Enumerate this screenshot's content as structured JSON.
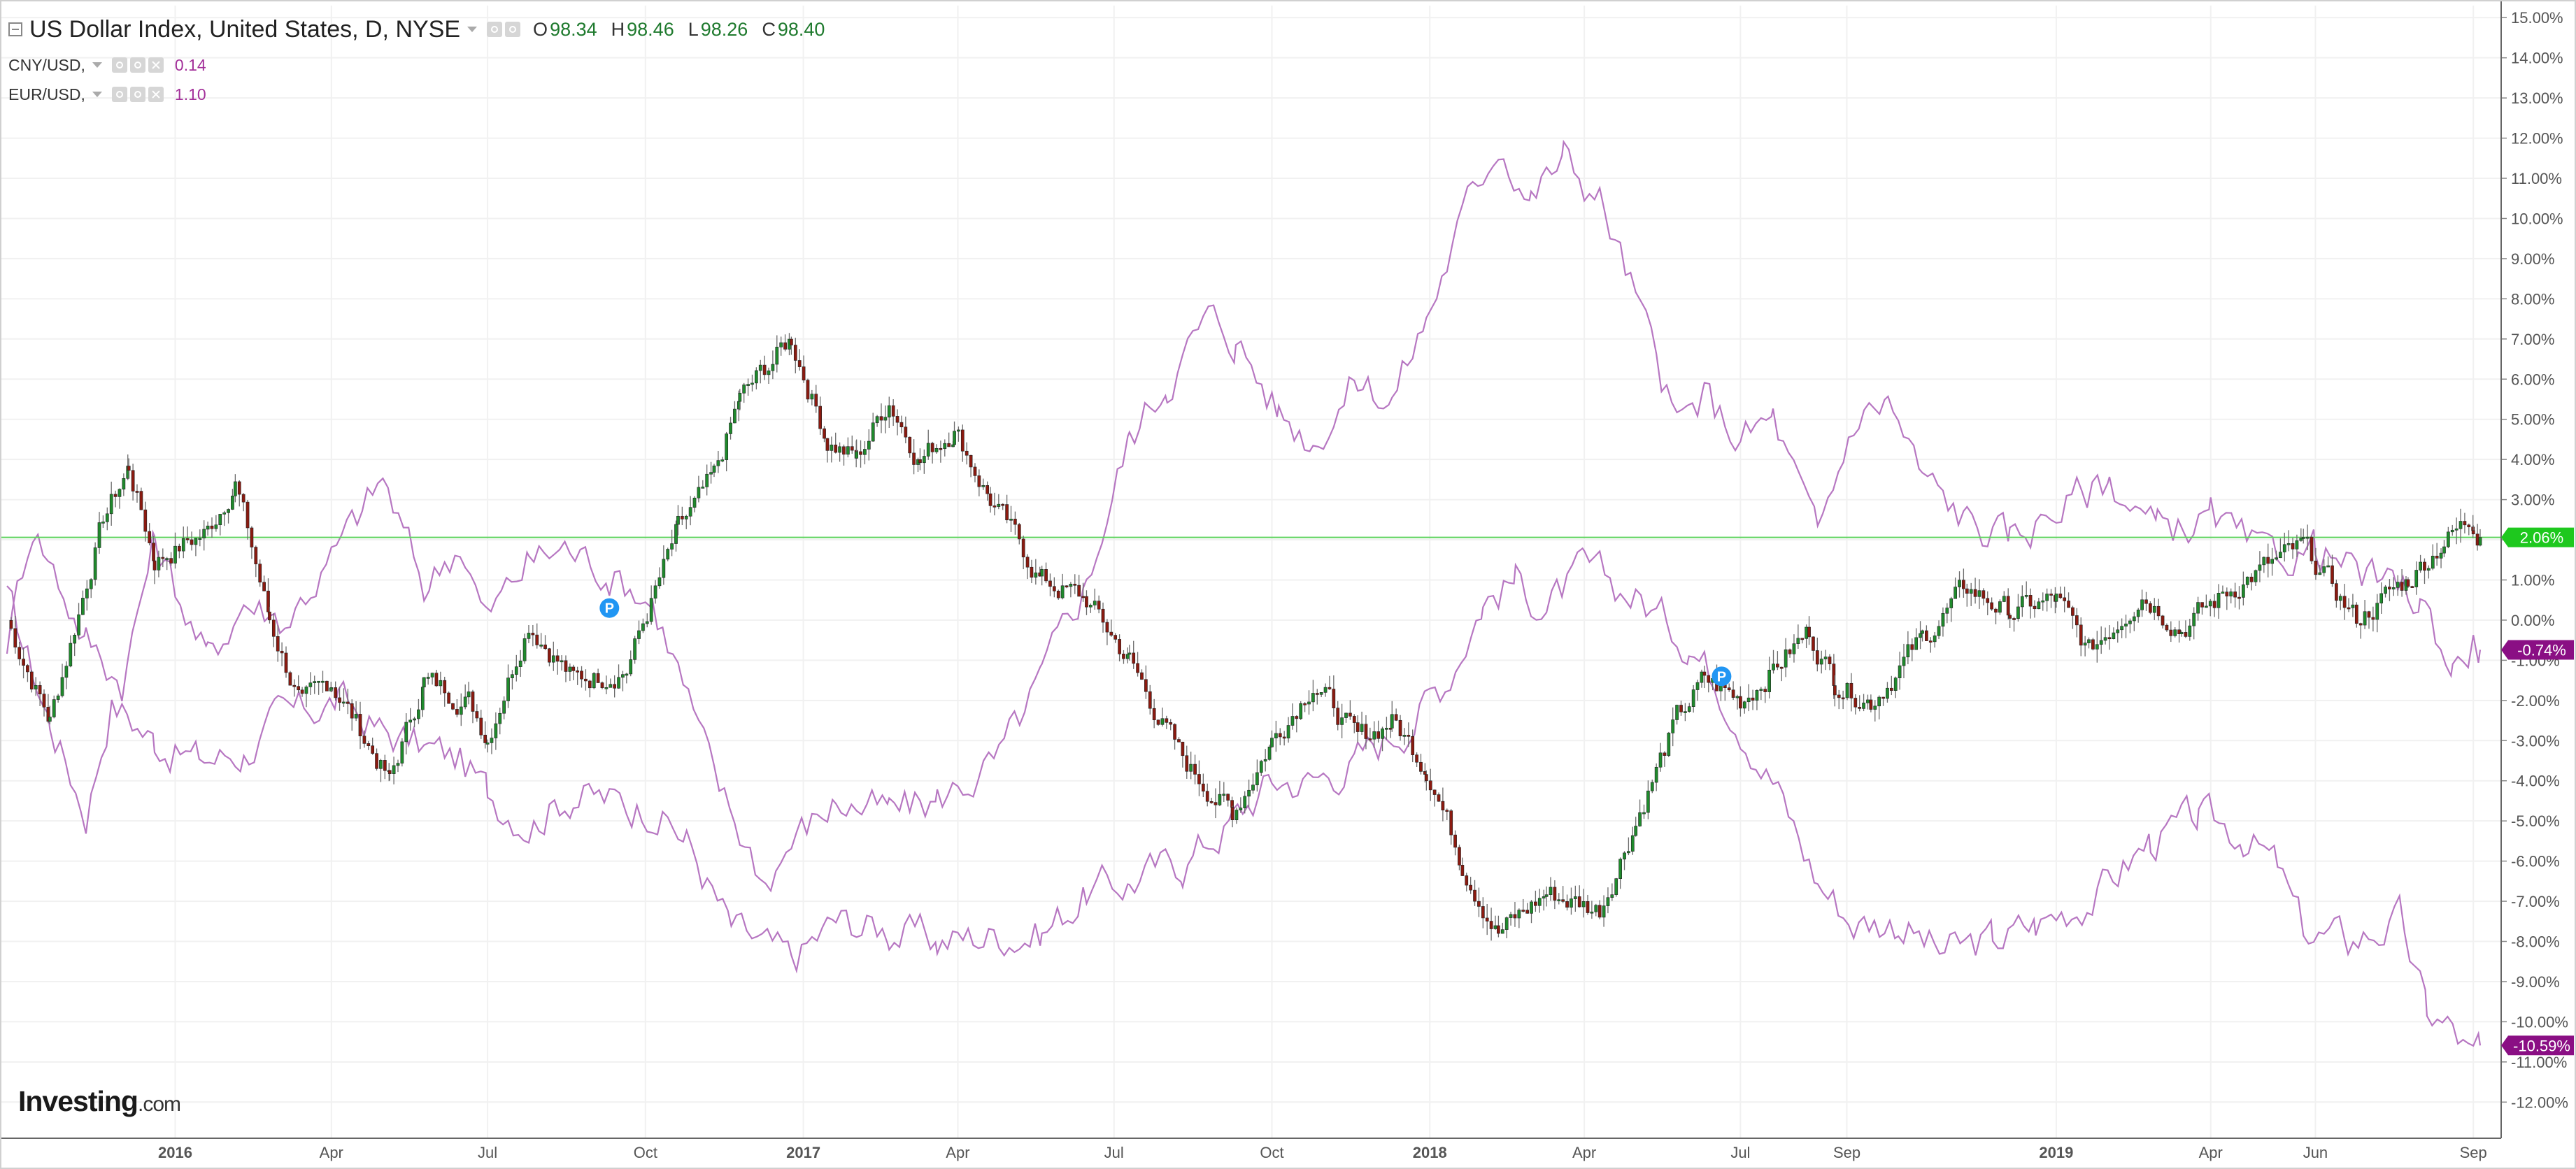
{
  "header": {
    "title": "US Dollar Index, United States, D, NYSE",
    "ohlc": [
      {
        "key": "O",
        "value": "98.34"
      },
      {
        "key": "H",
        "value": "98.46"
      },
      {
        "key": "L",
        "value": "98.26"
      },
      {
        "key": "C",
        "value": "98.40"
      }
    ]
  },
  "overlays": [
    {
      "name": "CNY/USD,",
      "value": "0.14"
    },
    {
      "name": "EUR/USD,",
      "value": "1.10"
    }
  ],
  "logo": {
    "brand": "Investing",
    "suffix": ".com"
  },
  "colors": {
    "up": "#1f8a2c",
    "down": "#8b1a10",
    "overlay_line": "#b777c2",
    "current_line": "#5ed45e",
    "badge_green": "#1ec81e",
    "badge_purple": "#8a0f84",
    "marker": "#2196f3",
    "axis": "#555555",
    "grid": "#f1f1f1"
  },
  "chart_data": {
    "type": "line",
    "title": "US Dollar Index, United States, D, NYSE",
    "y_unit": "%",
    "ylim": [
      -12.9,
      15.3
    ],
    "y_ticks": [
      "15.00%",
      "14.00%",
      "13.00%",
      "12.00%",
      "11.00%",
      "10.00%",
      "9.00%",
      "8.00%",
      "7.00%",
      "6.00%",
      "5.00%",
      "4.00%",
      "3.00%",
      "2.00%",
      "1.00%",
      "0.00%",
      "-1.00%",
      "-2.00%",
      "-3.00%",
      "-4.00%",
      "-5.00%",
      "-6.00%",
      "-7.00%",
      "-8.00%",
      "-9.00%",
      "-10.00%",
      "-11.00%",
      "-12.00%"
    ],
    "x_ticks": [
      {
        "label": "2016",
        "bold": true,
        "t": "2016-01-01"
      },
      {
        "label": "Apr",
        "bold": false,
        "t": "2016-04-01"
      },
      {
        "label": "Jul",
        "bold": false,
        "t": "2016-07-01"
      },
      {
        "label": "Oct",
        "bold": false,
        "t": "2016-10-01"
      },
      {
        "label": "2017",
        "bold": true,
        "t": "2017-01-01"
      },
      {
        "label": "Apr",
        "bold": false,
        "t": "2017-04-01"
      },
      {
        "label": "Jul",
        "bold": false,
        "t": "2017-07-01"
      },
      {
        "label": "Oct",
        "bold": false,
        "t": "2017-10-01"
      },
      {
        "label": "2018",
        "bold": true,
        "t": "2018-01-01"
      },
      {
        "label": "Apr",
        "bold": false,
        "t": "2018-04-01"
      },
      {
        "label": "Jul",
        "bold": false,
        "t": "2018-07-01"
      },
      {
        "label": "Sep",
        "bold": false,
        "t": "2018-09-01"
      },
      {
        "label": "2019",
        "bold": true,
        "t": "2019-01-01"
      },
      {
        "label": "Apr",
        "bold": false,
        "t": "2019-04-01"
      },
      {
        "label": "Jun",
        "bold": false,
        "t": "2019-06-01"
      },
      {
        "label": "Sep",
        "bold": false,
        "t": "2019-09-01"
      }
    ],
    "x_range": [
      "2015-09-25",
      "2019-09-05"
    ],
    "grid": true,
    "current_value_line": 2.06,
    "badges": [
      {
        "label": "2.06%",
        "value": 2.06,
        "color": "badge_green"
      },
      {
        "label": "-0.74%",
        "value": -0.74,
        "color": "badge_purple"
      },
      {
        "label": "-10.59%",
        "value": -10.59,
        "color": "badge_purple"
      }
    ],
    "markers": [
      {
        "label": "P",
        "t": "2016-09-10",
        "value": 0.3
      },
      {
        "label": "P",
        "t": "2018-06-20",
        "value": -1.4
      }
    ],
    "series": [
      {
        "name": "US Dollar Index",
        "style": "candles",
        "points": [
          {
            "t": "2015-09-25",
            "v": 0.0
          },
          {
            "t": "2015-10-20",
            "v": -2.5
          },
          {
            "t": "2015-11-20",
            "v": 2.5
          },
          {
            "t": "2015-12-05",
            "v": 3.8
          },
          {
            "t": "2015-12-20",
            "v": 1.5
          },
          {
            "t": "2016-01-20",
            "v": 2.2
          },
          {
            "t": "2016-02-05",
            "v": 3.5
          },
          {
            "t": "2016-02-25",
            "v": 0.0
          },
          {
            "t": "2016-03-15",
            "v": -2.2
          },
          {
            "t": "2016-04-01",
            "v": -1.5
          },
          {
            "t": "2016-05-05",
            "v": -4.0
          },
          {
            "t": "2016-05-25",
            "v": -1.5
          },
          {
            "t": "2016-06-20",
            "v": -2.0
          },
          {
            "t": "2016-07-01",
            "v": -2.9
          },
          {
            "t": "2016-07-25",
            "v": 0.0
          },
          {
            "t": "2016-08-20",
            "v": -1.5
          },
          {
            "t": "2016-09-20",
            "v": -1.2
          },
          {
            "t": "2016-10-20",
            "v": 2.2
          },
          {
            "t": "2016-11-10",
            "v": 3.5
          },
          {
            "t": "2016-11-25",
            "v": 5.5
          },
          {
            "t": "2016-12-25",
            "v": 7.0
          },
          {
            "t": "2017-01-15",
            "v": 4.5
          },
          {
            "t": "2017-02-01",
            "v": 4.0
          },
          {
            "t": "2017-02-20",
            "v": 5.5
          },
          {
            "t": "2017-03-10",
            "v": 4.0
          },
          {
            "t": "2017-03-30",
            "v": 4.8
          },
          {
            "t": "2017-04-20",
            "v": 3.0
          },
          {
            "t": "2017-05-20",
            "v": 1.0
          },
          {
            "t": "2017-06-15",
            "v": 0.5
          },
          {
            "t": "2017-07-10",
            "v": -1.0
          },
          {
            "t": "2017-08-10",
            "v": -3.5
          },
          {
            "t": "2017-09-08",
            "v": -4.8
          },
          {
            "t": "2017-10-01",
            "v": -3.0
          },
          {
            "t": "2017-10-25",
            "v": -1.5
          },
          {
            "t": "2017-11-20",
            "v": -3.0
          },
          {
            "t": "2017-12-10",
            "v": -2.5
          },
          {
            "t": "2017-12-30",
            "v": -3.6
          },
          {
            "t": "2018-01-20",
            "v": -6.0
          },
          {
            "t": "2018-02-10",
            "v": -7.8
          },
          {
            "t": "2018-03-10",
            "v": -6.8
          },
          {
            "t": "2018-04-10",
            "v": -7.2
          },
          {
            "t": "2018-05-01",
            "v": -5.0
          },
          {
            "t": "2018-05-25",
            "v": -2.5
          },
          {
            "t": "2018-06-10",
            "v": -1.5
          },
          {
            "t": "2018-07-01",
            "v": -2.0
          },
          {
            "t": "2018-08-10",
            "v": -0.3
          },
          {
            "t": "2018-08-25",
            "v": -1.5
          },
          {
            "t": "2018-09-15",
            "v": -2.0
          },
          {
            "t": "2018-10-15",
            "v": -0.5
          },
          {
            "t": "2018-11-10",
            "v": 0.8
          },
          {
            "t": "2018-12-05",
            "v": 0.2
          },
          {
            "t": "2019-01-01",
            "v": 0.5
          },
          {
            "t": "2019-01-20",
            "v": -0.8
          },
          {
            "t": "2019-02-20",
            "v": 0.7
          },
          {
            "t": "2019-03-15",
            "v": -0.2
          },
          {
            "t": "2019-04-20",
            "v": 1.0
          },
          {
            "t": "2019-05-25",
            "v": 1.8
          },
          {
            "t": "2019-06-25",
            "v": 0.0
          },
          {
            "t": "2019-07-25",
            "v": 1.0
          },
          {
            "t": "2019-08-15",
            "v": 2.0
          },
          {
            "t": "2019-09-01",
            "v": 2.5
          },
          {
            "t": "2019-09-05",
            "v": 2.06
          }
        ]
      },
      {
        "name": "CNY/USD",
        "style": "line",
        "points": [
          {
            "t": "2015-09-25",
            "v": 0.5
          },
          {
            "t": "2015-10-20",
            "v": -2.5
          },
          {
            "t": "2015-11-10",
            "v": -4.8
          },
          {
            "t": "2015-11-25",
            "v": -2.0
          },
          {
            "t": "2015-12-20",
            "v": -3.0
          },
          {
            "t": "2016-01-15",
            "v": -3.5
          },
          {
            "t": "2016-02-10",
            "v": -3.3
          },
          {
            "t": "2016-03-01",
            "v": -2.5
          },
          {
            "t": "2016-04-05",
            "v": -2.0
          },
          {
            "t": "2016-05-01",
            "v": -2.8
          },
          {
            "t": "2016-06-15",
            "v": -3.5
          },
          {
            "t": "2016-07-01",
            "v": -4.3
          },
          {
            "t": "2016-07-25",
            "v": -5.0
          },
          {
            "t": "2016-08-20",
            "v": -4.3
          },
          {
            "t": "2016-09-20",
            "v": -4.6
          },
          {
            "t": "2016-10-05",
            "v": -4.6
          },
          {
            "t": "2016-10-25",
            "v": -5.5
          },
          {
            "t": "2016-11-20",
            "v": -7.7
          },
          {
            "t": "2016-12-25",
            "v": -8.5
          },
          {
            "t": "2017-01-20",
            "v": -7.5
          },
          {
            "t": "2017-02-20",
            "v": -7.7
          },
          {
            "t": "2017-03-20",
            "v": -8.0
          },
          {
            "t": "2017-04-25",
            "v": -7.8
          },
          {
            "t": "2017-05-20",
            "v": -7.8
          },
          {
            "t": "2017-06-15",
            "v": -6.8
          },
          {
            "t": "2017-07-10",
            "v": -6.5
          },
          {
            "t": "2017-08-10",
            "v": -6.0
          },
          {
            "t": "2017-09-08",
            "v": -5.0
          },
          {
            "t": "2017-10-01",
            "v": -4.0
          },
          {
            "t": "2017-10-25",
            "v": -4.0
          },
          {
            "t": "2017-11-20",
            "v": -3.5
          },
          {
            "t": "2017-12-20",
            "v": -2.5
          },
          {
            "t": "2018-01-10",
            "v": -1.5
          },
          {
            "t": "2018-02-01",
            "v": 0.5
          },
          {
            "t": "2018-02-20",
            "v": 1.0
          },
          {
            "t": "2018-03-10",
            "v": 0.3
          },
          {
            "t": "2018-04-01",
            "v": 1.2
          },
          {
            "t": "2018-05-01",
            "v": 0.6
          },
          {
            "t": "2018-06-01",
            "v": -0.5
          },
          {
            "t": "2018-06-25",
            "v": -2.0
          },
          {
            "t": "2018-07-20",
            "v": -4.0
          },
          {
            "t": "2018-08-15",
            "v": -6.5
          },
          {
            "t": "2018-09-05",
            "v": -7.5
          },
          {
            "t": "2018-10-01",
            "v": -7.5
          },
          {
            "t": "2018-10-25",
            "v": -8.3
          },
          {
            "t": "2018-11-25",
            "v": -8.0
          },
          {
            "t": "2018-12-20",
            "v": -7.6
          },
          {
            "t": "2019-01-25",
            "v": -6.8
          },
          {
            "t": "2019-02-25",
            "v": -5.5
          },
          {
            "t": "2019-03-25",
            "v": -5.0
          },
          {
            "t": "2019-04-20",
            "v": -5.3
          },
          {
            "t": "2019-05-10",
            "v": -6.2
          },
          {
            "t": "2019-05-25",
            "v": -7.8
          },
          {
            "t": "2019-06-20",
            "v": -8.0
          },
          {
            "t": "2019-07-20",
            "v": -7.5
          },
          {
            "t": "2019-08-05",
            "v": -9.8
          },
          {
            "t": "2019-08-20",
            "v": -10.2
          },
          {
            "t": "2019-09-01",
            "v": -11.0
          },
          {
            "t": "2019-09-05",
            "v": -10.59
          }
        ]
      },
      {
        "name": "EUR/USD",
        "style": "line",
        "points": [
          {
            "t": "2015-09-25",
            "v": -0.5
          },
          {
            "t": "2015-10-10",
            "v": 2.5
          },
          {
            "t": "2015-10-25",
            "v": 1.0
          },
          {
            "t": "2015-11-10",
            "v": -0.5
          },
          {
            "t": "2015-12-01",
            "v": -1.5
          },
          {
            "t": "2015-12-20",
            "v": 2.0
          },
          {
            "t": "2016-01-20",
            "v": -1.0
          },
          {
            "t": "2016-02-10",
            "v": 0.5
          },
          {
            "t": "2016-03-05",
            "v": 0.0
          },
          {
            "t": "2016-04-01",
            "v": 1.5
          },
          {
            "t": "2016-05-01",
            "v": 3.5
          },
          {
            "t": "2016-05-25",
            "v": 0.8
          },
          {
            "t": "2016-06-15",
            "v": 2.0
          },
          {
            "t": "2016-06-30",
            "v": 0.0
          },
          {
            "t": "2016-07-25",
            "v": 1.5
          },
          {
            "t": "2016-08-15",
            "v": 1.8
          },
          {
            "t": "2016-09-10",
            "v": 1.2
          },
          {
            "t": "2016-10-05",
            "v": 0.5
          },
          {
            "t": "2016-10-20",
            "v": -1.2
          },
          {
            "t": "2016-11-10",
            "v": -4.0
          },
          {
            "t": "2016-12-10",
            "v": -6.5
          },
          {
            "t": "2016-12-25",
            "v": -5.5
          },
          {
            "t": "2017-01-20",
            "v": -4.5
          },
          {
            "t": "2017-02-20",
            "v": -4.8
          },
          {
            "t": "2017-03-20",
            "v": -4.5
          },
          {
            "t": "2017-04-25",
            "v": -3.5
          },
          {
            "t": "2017-05-20",
            "v": -1.5
          },
          {
            "t": "2017-06-15",
            "v": 1.0
          },
          {
            "t": "2017-07-10",
            "v": 4.5
          },
          {
            "t": "2017-08-01",
            "v": 6.0
          },
          {
            "t": "2017-08-25",
            "v": 7.5
          },
          {
            "t": "2017-09-10",
            "v": 7.0
          },
          {
            "t": "2017-10-05",
            "v": 5.2
          },
          {
            "t": "2017-10-25",
            "v": 4.5
          },
          {
            "t": "2017-11-20",
            "v": 6.0
          },
          {
            "t": "2017-12-10",
            "v": 5.5
          },
          {
            "t": "2017-12-30",
            "v": 7.5
          },
          {
            "t": "2018-01-20",
            "v": 10.0
          },
          {
            "t": "2018-02-10",
            "v": 12.0
          },
          {
            "t": "2018-03-01",
            "v": 10.5
          },
          {
            "t": "2018-03-20",
            "v": 11.5
          },
          {
            "t": "2018-04-10",
            "v": 10.5
          },
          {
            "t": "2018-05-01",
            "v": 8.0
          },
          {
            "t": "2018-05-25",
            "v": 4.8
          },
          {
            "t": "2018-06-10",
            "v": 5.5
          },
          {
            "t": "2018-07-01",
            "v": 4.5
          },
          {
            "t": "2018-07-20",
            "v": 5.0
          },
          {
            "t": "2018-08-15",
            "v": 2.0
          },
          {
            "t": "2018-09-05",
            "v": 5.0
          },
          {
            "t": "2018-09-25",
            "v": 5.5
          },
          {
            "t": "2018-10-15",
            "v": 3.5
          },
          {
            "t": "2018-11-10",
            "v": 2.5
          },
          {
            "t": "2018-12-05",
            "v": 2.0
          },
          {
            "t": "2019-01-01",
            "v": 2.8
          },
          {
            "t": "2019-02-01",
            "v": 3.5
          },
          {
            "t": "2019-03-01",
            "v": 2.2
          },
          {
            "t": "2019-04-01",
            "v": 2.5
          },
          {
            "t": "2019-05-01",
            "v": 1.5
          },
          {
            "t": "2019-06-01",
            "v": 1.8
          },
          {
            "t": "2019-07-01",
            "v": 1.0
          },
          {
            "t": "2019-08-01",
            "v": 0.5
          },
          {
            "t": "2019-08-20",
            "v": -1.2
          },
          {
            "t": "2019-09-01",
            "v": -0.5
          },
          {
            "t": "2019-09-05",
            "v": -0.74
          }
        ]
      }
    ]
  }
}
